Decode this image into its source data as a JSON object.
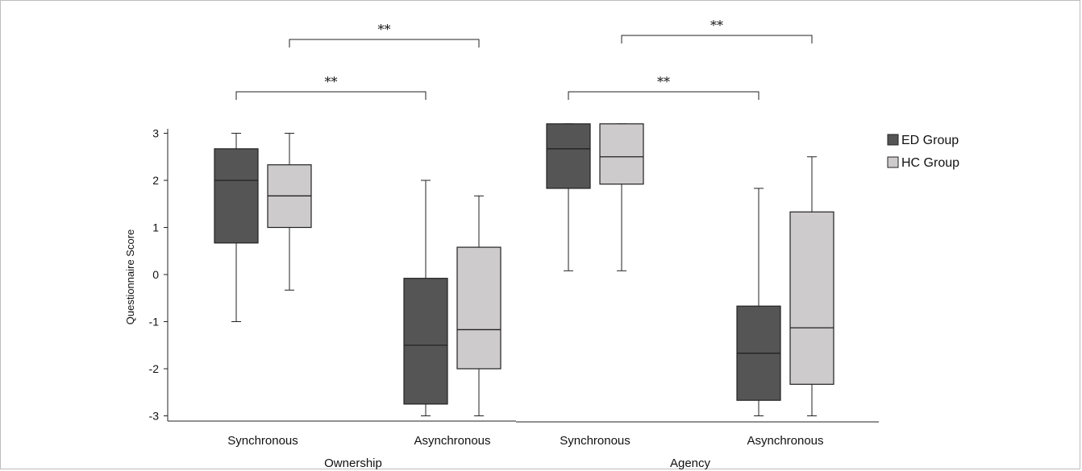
{
  "chart_data": {
    "type": "boxplot",
    "ylabel": "Questionnaire Score",
    "ylim": [
      -3,
      3
    ],
    "yticks": [
      "3",
      "2",
      "1",
      "0",
      "-1",
      "-2",
      "-3"
    ],
    "groups": [
      {
        "label": "Ownership",
        "categories": [
          "Synchronous",
          "Asynchronous"
        ]
      },
      {
        "label": "Agency",
        "categories": [
          "Synchronous",
          "Asynchronous"
        ]
      }
    ],
    "series": [
      {
        "name": "ED Group",
        "color": "#555555",
        "boxes": [
          {
            "group": "Ownership",
            "category": "Synchronous",
            "min": -1.0,
            "q1": 0.67,
            "median": 2.0,
            "q3": 2.67,
            "max": 3.0
          },
          {
            "group": "Ownership",
            "category": "Asynchronous",
            "min": -3.0,
            "q1": -2.75,
            "median": -1.5,
            "q3": -0.08,
            "max": 2.0
          },
          {
            "group": "Agency",
            "category": "Synchronous",
            "min": 0.08,
            "q1": 1.83,
            "median": 2.67,
            "q3": 3.2,
            "max": 3.2
          },
          {
            "group": "Agency",
            "category": "Asynchronous",
            "min": -3.0,
            "q1": -2.67,
            "median": -1.67,
            "q3": -0.67,
            "max": 1.83
          }
        ]
      },
      {
        "name": "HC Group",
        "color": "#cdcbcc",
        "boxes": [
          {
            "group": "Ownership",
            "category": "Synchronous",
            "min": -0.33,
            "q1": 1.0,
            "median": 1.67,
            "q3": 2.33,
            "max": 3.0
          },
          {
            "group": "Ownership",
            "category": "Asynchronous",
            "min": -3.0,
            "q1": -2.0,
            "median": -1.17,
            "q3": 0.58,
            "max": 1.67
          },
          {
            "group": "Agency",
            "category": "Synchronous",
            "min": 0.08,
            "q1": 1.92,
            "median": 2.5,
            "q3": 3.2,
            "max": 3.2
          },
          {
            "group": "Agency",
            "category": "Asynchronous",
            "min": -3.0,
            "q1": -2.33,
            "median": -1.13,
            "q3": 1.33,
            "max": 2.5
          }
        ]
      }
    ],
    "significance": [
      {
        "label": "**",
        "from": "Ownership-Synchronous-ED Group",
        "to": "Ownership-Asynchronous-ED Group"
      },
      {
        "label": "**",
        "from": "Ownership-Synchronous-HC Group",
        "to": "Ownership-Asynchronous-HC Group"
      },
      {
        "label": "**",
        "from": "Agency-Synchronous-ED Group",
        "to": "Agency-Asynchronous-ED Group"
      },
      {
        "label": "**",
        "from": "Agency-Synchronous-HC Group",
        "to": "Agency-Asynchronous-HC Group"
      }
    ],
    "legend_position": "right",
    "grid": false
  }
}
